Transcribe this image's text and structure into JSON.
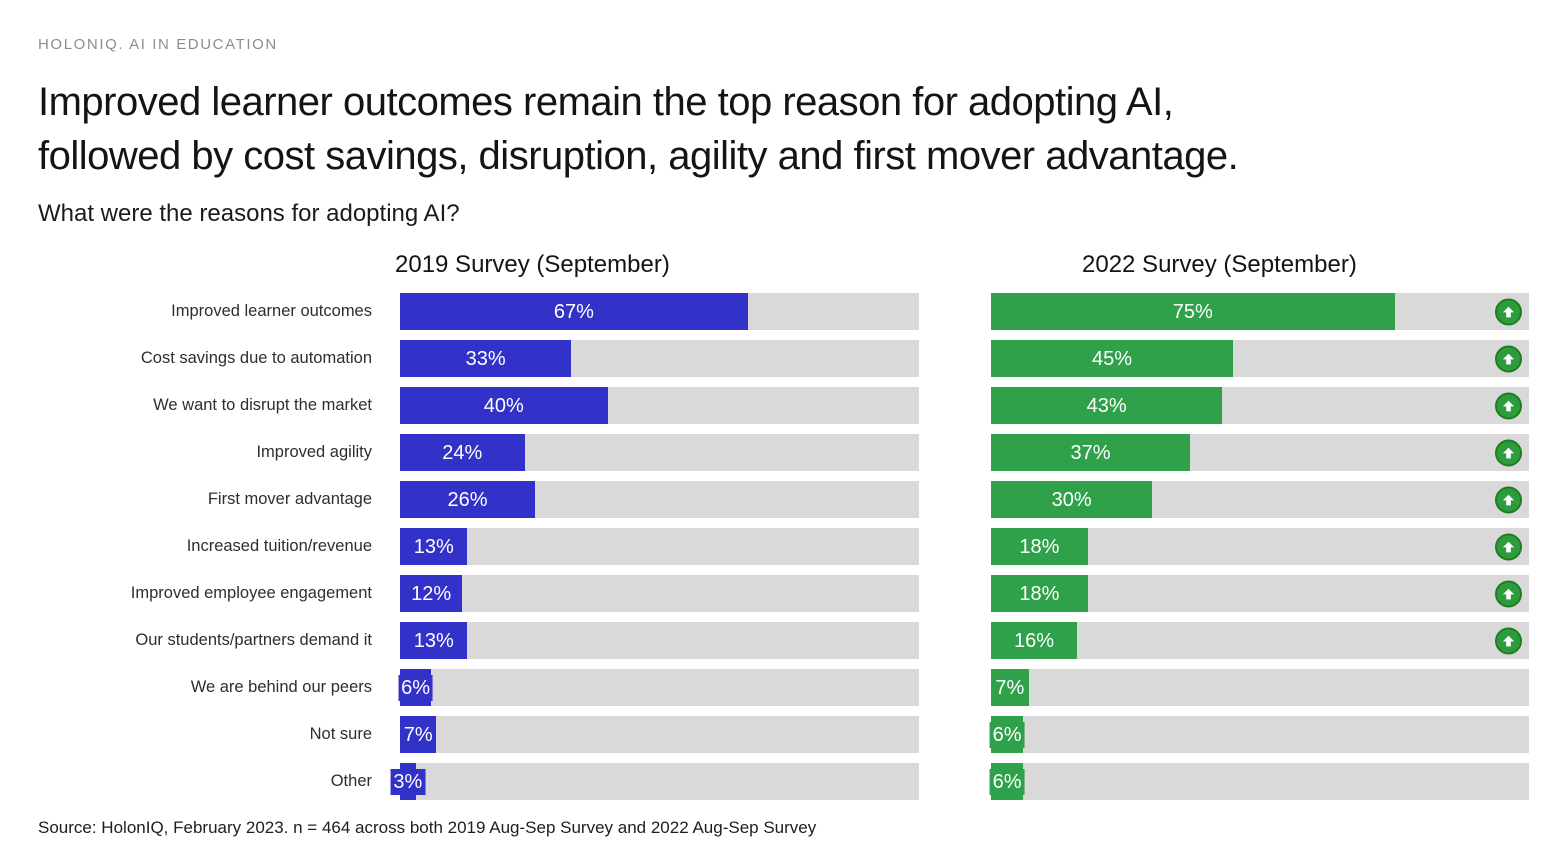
{
  "header": {
    "eyebrow": "HOLONIQ. AI IN EDUCATION",
    "title_line1": "Improved learner outcomes remain the top reason for adopting AI,",
    "title_line2": "followed by cost savings, disruption, agility and first mover advantage.",
    "question": "What were the reasons for adopting AI?"
  },
  "footer": {
    "source": "Source: HolonIQ, February 2023. n = 464 across both 2019 Aug-Sep Survey and 2022 Aug-Sep Survey"
  },
  "chart_data": {
    "type": "bar",
    "orientation": "horizontal",
    "value_unit": "%",
    "xlim": [
      0,
      100
    ],
    "grid": false,
    "track_color": "#d9d9d9",
    "categories": [
      "Improved learner outcomes",
      "Cost savings due to automation",
      "We want to disrupt the market",
      "Improved agility",
      "First mover advantage",
      "Increased tuition/revenue",
      "Improved employee engagement",
      "Our students/partners demand it",
      "We are behind our peers",
      "Not sure",
      "Other"
    ],
    "series": [
      {
        "name": "2019 Survey (September)",
        "color": "#3231C8",
        "values": [
          67,
          33,
          40,
          24,
          26,
          13,
          12,
          13,
          6,
          7,
          3
        ]
      },
      {
        "name": "2022 Survey (September)",
        "color": "#2FA14A",
        "values": [
          75,
          45,
          43,
          37,
          30,
          18,
          18,
          16,
          7,
          6,
          6
        ]
      }
    ],
    "increase_arrow_rows": [
      0,
      1,
      2,
      3,
      4,
      5,
      6,
      7
    ],
    "arrow_icon": {
      "name": "up-arrow-icon",
      "circle_color": "#2D9C3C",
      "border_color": "#1F7D1F",
      "glyph_color": "#FFFFFF"
    }
  }
}
